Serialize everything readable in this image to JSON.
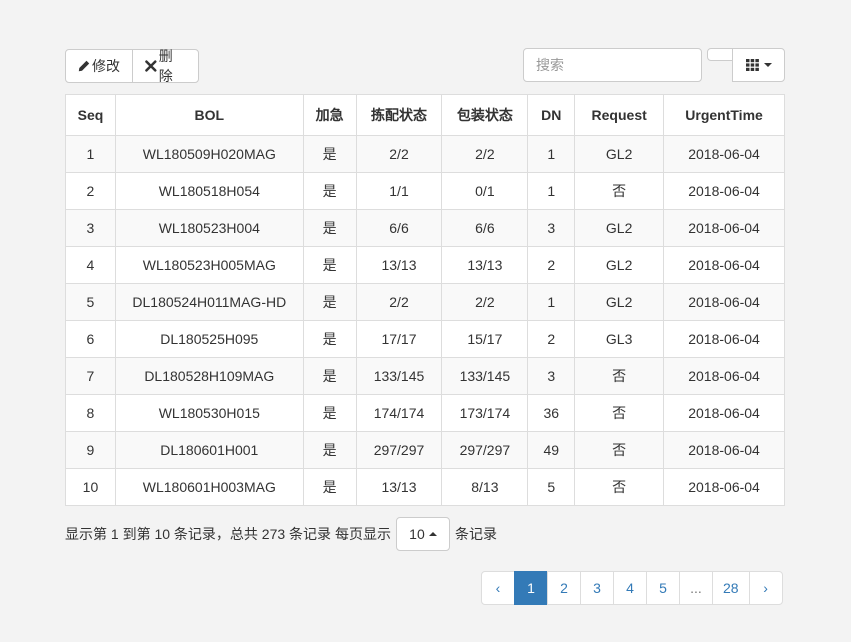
{
  "toolbar": {
    "edit_label": "修改",
    "delete_label": "删除",
    "search_placeholder": "搜索"
  },
  "table": {
    "headers": [
      "Seq",
      "BOL",
      "加急",
      "拣配状态",
      "包装状态",
      "DN",
      "Request",
      "UrgentTime"
    ],
    "rows": [
      [
        "1",
        "WL180509H020MAG",
        "是",
        "2/2",
        "2/2",
        "1",
        "GL2",
        "2018-06-04"
      ],
      [
        "2",
        "WL180518H054",
        "是",
        "1/1",
        "0/1",
        "1",
        "否",
        "2018-06-04"
      ],
      [
        "3",
        "WL180523H004",
        "是",
        "6/6",
        "6/6",
        "3",
        "GL2",
        "2018-06-04"
      ],
      [
        "4",
        "WL180523H005MAG",
        "是",
        "13/13",
        "13/13",
        "2",
        "GL2",
        "2018-06-04"
      ],
      [
        "5",
        "DL180524H011MAG-HD",
        "是",
        "2/2",
        "2/2",
        "1",
        "GL2",
        "2018-06-04"
      ],
      [
        "6",
        "DL180525H095",
        "是",
        "17/17",
        "15/17",
        "2",
        "GL3",
        "2018-06-04"
      ],
      [
        "7",
        "DL180528H109MAG",
        "是",
        "133/145",
        "133/145",
        "3",
        "否",
        "2018-06-04"
      ],
      [
        "8",
        "WL180530H015",
        "是",
        "174/174",
        "173/174",
        "36",
        "否",
        "2018-06-04"
      ],
      [
        "9",
        "DL180601H001",
        "是",
        "297/297",
        "297/297",
        "49",
        "否",
        "2018-06-04"
      ],
      [
        "10",
        "WL180601H003MAG",
        "是",
        "13/13",
        "8/13",
        "5",
        "否",
        "2018-06-04"
      ]
    ]
  },
  "pagination_info": {
    "summary": "显示第 1 到第 10 条记录，总共 273 条记录 每页显示",
    "page_size": "10",
    "suffix": "条记录"
  },
  "pagination": {
    "prev": "‹",
    "pages": [
      "1",
      "2",
      "3",
      "4",
      "5",
      "...",
      "28"
    ],
    "active": "1",
    "next": "›"
  },
  "colors": {
    "accent": "#337ab7",
    "background": "#f3f3f3",
    "stripe": "#f9f9f9"
  }
}
